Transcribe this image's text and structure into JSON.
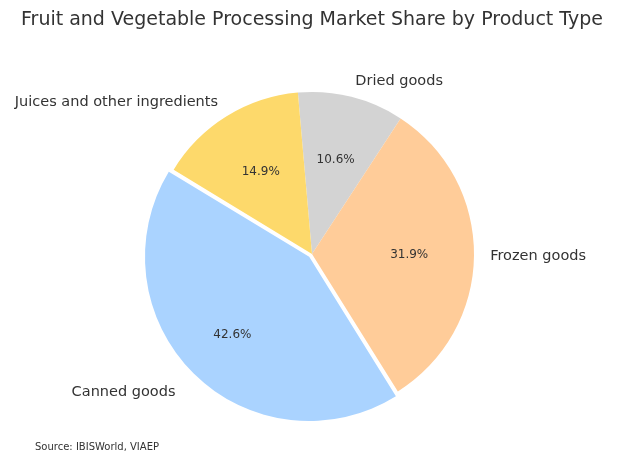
{
  "chart_data": {
    "type": "pie",
    "title": "Fruit and Vegetable Processing Market Share by Product Type",
    "categories": [
      "Dried goods",
      "Frozen goods",
      "Canned goods",
      "Juices and other ingredients"
    ],
    "values": [
      10.6,
      31.9,
      42.6,
      14.9
    ],
    "value_labels": [
      "10.6%",
      "31.9%",
      "42.6%",
      "14.9%"
    ],
    "colors": [
      "#d3d3d3",
      "#ffcc99",
      "#aad3ff",
      "#fdd96b"
    ],
    "data_labels": true,
    "source": "Source: IBISWorld, VIAEP"
  }
}
